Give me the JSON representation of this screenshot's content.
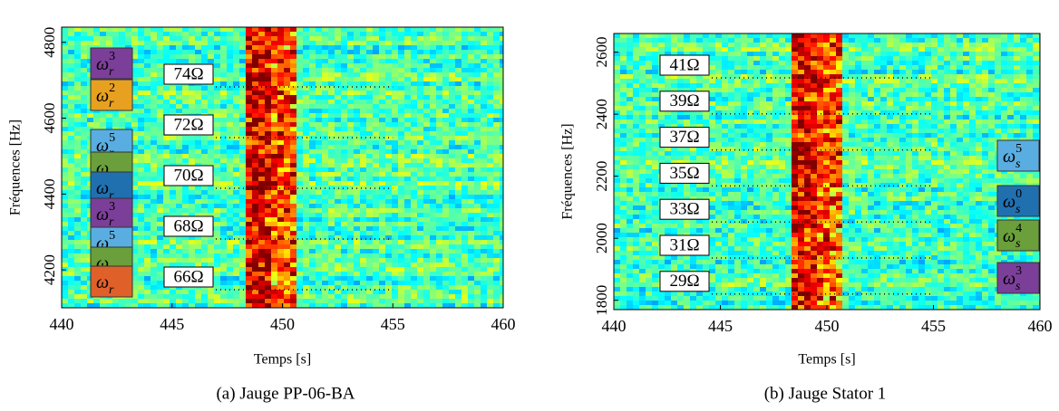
{
  "chart_data": [
    {
      "type": "spectrogram",
      "caption": "(a) Jauge PP-06-BA",
      "xlabel": "Temps [s]",
      "ylabel": "Fréquences [Hz]",
      "xlim": [
        440,
        460
      ],
      "xticks": [
        440,
        445,
        450,
        455,
        460
      ],
      "ylim": [
        4100,
        4840
      ],
      "yticks": [
        4200,
        4400,
        4600,
        4800
      ],
      "annotations": [
        "74Ω",
        "72Ω",
        "70Ω",
        "68Ω",
        "66Ω"
      ],
      "modes": [
        {
          "base": "ω",
          "sub": "r",
          "sup": "3",
          "color": "#7b3f99"
        },
        {
          "base": "ω",
          "sub": "r",
          "sup": "2",
          "color": "#e8a020"
        },
        {
          "base": "ω",
          "sub": "r",
          "sup": "5",
          "color": "#5aade0"
        },
        {
          "base": "ω",
          "sub": "r",
          "color": "#6a9f3c"
        },
        {
          "base": "ω",
          "sub": "r",
          "color": "#2070b0"
        },
        {
          "base": "ω",
          "sub": "r",
          "sup": "3",
          "color": "#7b3f99"
        },
        {
          "base": "ω",
          "sub": "r",
          "sup": "5",
          "color": "#5aade0"
        },
        {
          "base": "ω",
          "sub": "r",
          "color": "#6a9f3c"
        },
        {
          "base": "ω",
          "sub": "r",
          "color": "#e0602a"
        }
      ]
    },
    {
      "type": "spectrogram",
      "caption": "(b) Jauge Stator 1",
      "xlabel": "Temps [s]",
      "ylabel": "Fréquences [Hz]",
      "xlim": [
        440,
        460
      ],
      "xticks": [
        440,
        445,
        450,
        455,
        460
      ],
      "ylim": [
        1770,
        2660
      ],
      "yticks": [
        1800,
        2000,
        2200,
        2400,
        2600
      ],
      "annotations": [
        "41Ω",
        "39Ω",
        "37Ω",
        "35Ω",
        "33Ω",
        "31Ω",
        "29Ω"
      ],
      "modes": [
        {
          "base": "ω",
          "sub": "s",
          "sup": "5",
          "color": "#5aade0"
        },
        {
          "base": "ω",
          "sub": "s",
          "sup": "0",
          "color": "#2070b0"
        },
        {
          "base": "ω",
          "sub": "s",
          "sup": "4",
          "color": "#6a9f3c"
        },
        {
          "base": "ω",
          "sub": "s",
          "sup": "3",
          "color": "#7b3f99"
        }
      ]
    }
  ]
}
